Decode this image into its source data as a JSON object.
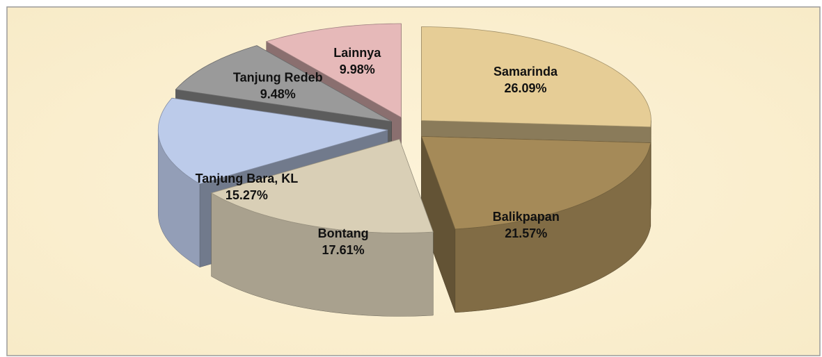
{
  "chart_data": {
    "type": "pie",
    "categories": [
      "Samarinda",
      "Balikpapan",
      "Bontang",
      "Tanjung Bara, KL",
      "Tanjung Redeb",
      "Lainnya"
    ],
    "values": [
      26.09,
      21.57,
      17.61,
      15.27,
      9.48,
      9.98
    ],
    "value_labels": [
      "26.09%",
      "21.57%",
      "17.61%",
      "15.27%",
      "9.48%",
      "9.98%"
    ],
    "colors": [
      "#e6cd96",
      "#a58a58",
      "#d9cfb6",
      "#bccbea",
      "#9a9a9a",
      "#e6b9b9"
    ]
  }
}
